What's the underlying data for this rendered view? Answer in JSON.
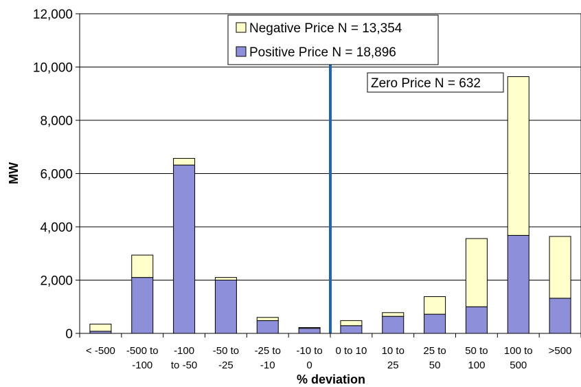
{
  "chart_data": {
    "type": "bar",
    "stacked": true,
    "categories": [
      [
        "< -500"
      ],
      [
        "-500 to",
        "-100"
      ],
      [
        "-100",
        "to -50"
      ],
      [
        "-50 to",
        "-25"
      ],
      [
        "-25 to",
        "-10"
      ],
      [
        "-10 to",
        "0"
      ],
      [
        "0 to 10"
      ],
      [
        "10 to",
        "25"
      ],
      [
        "25 to",
        "50"
      ],
      [
        "50 to",
        "100"
      ],
      [
        "100 to",
        "500"
      ],
      [
        ">500"
      ]
    ],
    "series": [
      {
        "name": "Positive Price N = 18,896",
        "color": "#8E8FD9",
        "values": [
          80,
          2100,
          6320,
          2000,
          480,
          190,
          290,
          640,
          720,
          1000,
          3680,
          1320
        ]
      },
      {
        "name": "Negative Price N = 13,354",
        "color": "#FFFFCC",
        "values": [
          270,
          840,
          250,
          100,
          120,
          30,
          190,
          140,
          660,
          2560,
          5960,
          2320
        ]
      }
    ],
    "xlabel": "% deviation",
    "ylabel": "MW",
    "ylim": [
      0,
      12000
    ],
    "yticks": [
      "0",
      "2,000",
      "4,000",
      "6,000",
      "8,000",
      "10,000",
      "12,000"
    ],
    "grid": true,
    "legend_position": "top-center",
    "annotation": "Zero Price N = 632",
    "divider_color": "#1F63B5"
  }
}
